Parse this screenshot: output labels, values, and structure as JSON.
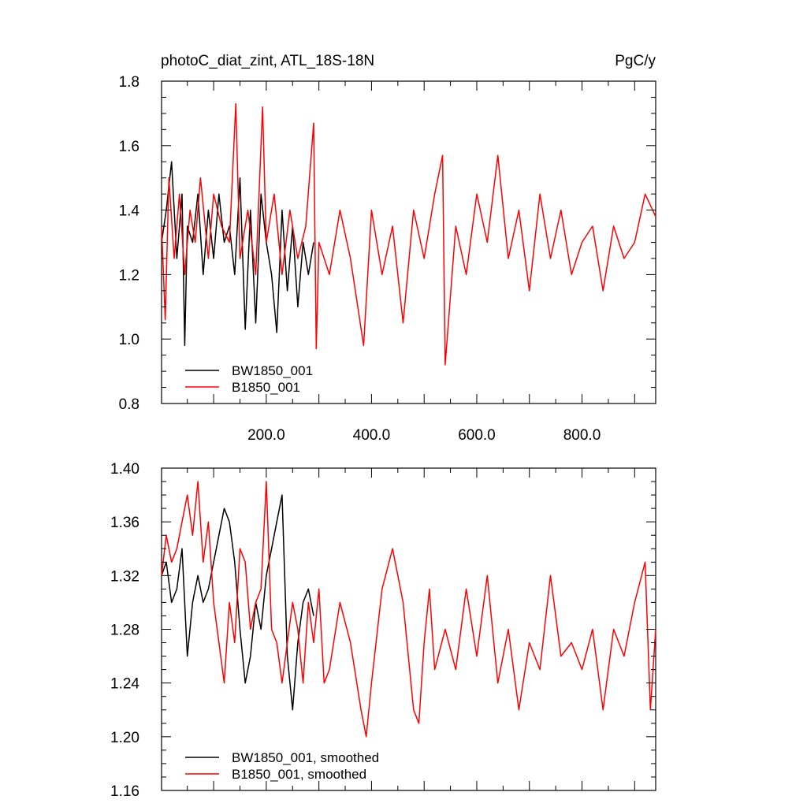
{
  "chart_data": [
    {
      "type": "line",
      "title_left": "photoC_diat_zint, ATL_18S-18N",
      "title_right": "PgC/y",
      "xlim": [
        1,
        940
      ],
      "ylim": [
        0.8,
        1.8
      ],
      "yticks": [
        "1.8",
        "1.6",
        "1.4",
        "1.2",
        "1.0",
        "0.8"
      ],
      "xticks": [
        "200.0",
        "400.0",
        "600.0",
        "800.0"
      ],
      "grid": false,
      "legend_position": "bottom-left",
      "series": [
        {
          "name": "BW1850_001",
          "color": "#000000",
          "x": [
            1,
            10,
            20,
            30,
            40,
            45,
            50,
            60,
            70,
            80,
            90,
            100,
            110,
            120,
            130,
            140,
            150,
            160,
            170,
            180,
            190,
            200,
            210,
            220,
            230,
            240,
            250,
            260,
            270,
            280,
            290
          ],
          "y": [
            1.3,
            1.4,
            1.55,
            1.25,
            1.45,
            0.98,
            1.35,
            1.3,
            1.45,
            1.2,
            1.4,
            1.25,
            1.45,
            1.3,
            1.35,
            1.2,
            1.5,
            1.03,
            1.4,
            1.05,
            1.45,
            1.3,
            1.2,
            1.02,
            1.4,
            1.15,
            1.35,
            1.1,
            1.3,
            1.2,
            1.3
          ]
        },
        {
          "name": "B1850_001",
          "color": "#ff0000",
          "x": [
            1,
            8,
            15,
            25,
            35,
            45,
            55,
            65,
            75,
            90,
            100,
            115,
            130,
            142,
            150,
            165,
            180,
            193,
            200,
            215,
            230,
            245,
            260,
            275,
            290,
            295,
            300,
            320,
            340,
            360,
            385,
            400,
            420,
            440,
            460,
            480,
            500,
            520,
            535,
            540,
            560,
            580,
            600,
            620,
            640,
            660,
            680,
            700,
            720,
            740,
            760,
            780,
            800,
            820,
            840,
            860,
            880,
            900,
            920,
            940
          ],
          "y": [
            1.35,
            1.06,
            1.5,
            1.25,
            1.45,
            1.2,
            1.4,
            1.3,
            1.5,
            1.25,
            1.45,
            1.35,
            1.3,
            1.73,
            1.25,
            1.4,
            1.2,
            1.72,
            1.3,
            1.45,
            1.2,
            1.4,
            1.25,
            1.35,
            1.67,
            0.97,
            1.3,
            1.2,
            1.4,
            1.25,
            0.98,
            1.4,
            1.2,
            1.35,
            1.05,
            1.4,
            1.25,
            1.45,
            1.57,
            0.92,
            1.35,
            1.2,
            1.45,
            1.3,
            1.57,
            1.25,
            1.4,
            1.15,
            1.45,
            1.25,
            1.4,
            1.2,
            1.3,
            1.35,
            1.15,
            1.35,
            1.25,
            1.3,
            1.45,
            1.38
          ]
        }
      ]
    },
    {
      "type": "line",
      "xlim": [
        1,
        940
      ],
      "ylim": [
        1.16,
        1.4
      ],
      "yticks": [
        "1.40",
        "1.36",
        "1.32",
        "1.28",
        "1.24",
        "1.20",
        "1.16"
      ],
      "grid": false,
      "legend_position": "bottom-left",
      "series": [
        {
          "name": "BW1850_001, smoothed",
          "color": "#000000",
          "x": [
            1,
            10,
            20,
            30,
            40,
            50,
            60,
            70,
            80,
            90,
            100,
            110,
            120,
            130,
            140,
            150,
            160,
            170,
            180,
            190,
            200,
            210,
            220,
            230,
            240,
            250,
            260,
            270,
            280,
            290
          ],
          "y": [
            1.32,
            1.33,
            1.3,
            1.31,
            1.34,
            1.26,
            1.3,
            1.32,
            1.3,
            1.31,
            1.33,
            1.35,
            1.37,
            1.36,
            1.33,
            1.28,
            1.24,
            1.26,
            1.3,
            1.28,
            1.32,
            1.34,
            1.36,
            1.38,
            1.26,
            1.22,
            1.27,
            1.3,
            1.31,
            1.29
          ]
        },
        {
          "name": "B1850_001, smoothed",
          "color": "#ff0000",
          "x": [
            1,
            10,
            20,
            30,
            40,
            50,
            60,
            70,
            80,
            90,
            100,
            110,
            120,
            130,
            140,
            150,
            160,
            170,
            180,
            190,
            200,
            210,
            220,
            230,
            240,
            250,
            260,
            270,
            280,
            290,
            300,
            310,
            320,
            340,
            360,
            380,
            390,
            400,
            420,
            440,
            460,
            480,
            490,
            500,
            510,
            520,
            540,
            560,
            580,
            600,
            620,
            640,
            660,
            680,
            700,
            720,
            740,
            760,
            780,
            800,
            820,
            840,
            860,
            880,
            900,
            920,
            930,
            940
          ],
          "y": [
            1.32,
            1.35,
            1.33,
            1.34,
            1.36,
            1.38,
            1.35,
            1.39,
            1.33,
            1.36,
            1.3,
            1.27,
            1.24,
            1.3,
            1.27,
            1.34,
            1.33,
            1.28,
            1.3,
            1.31,
            1.39,
            1.28,
            1.27,
            1.24,
            1.27,
            1.3,
            1.28,
            1.24,
            1.3,
            1.27,
            1.31,
            1.24,
            1.25,
            1.3,
            1.27,
            1.22,
            1.2,
            1.24,
            1.31,
            1.34,
            1.3,
            1.22,
            1.21,
            1.27,
            1.31,
            1.25,
            1.28,
            1.25,
            1.31,
            1.26,
            1.32,
            1.24,
            1.28,
            1.22,
            1.27,
            1.25,
            1.32,
            1.26,
            1.27,
            1.25,
            1.28,
            1.22,
            1.28,
            1.26,
            1.3,
            1.33,
            1.22,
            1.28
          ]
        }
      ]
    }
  ]
}
